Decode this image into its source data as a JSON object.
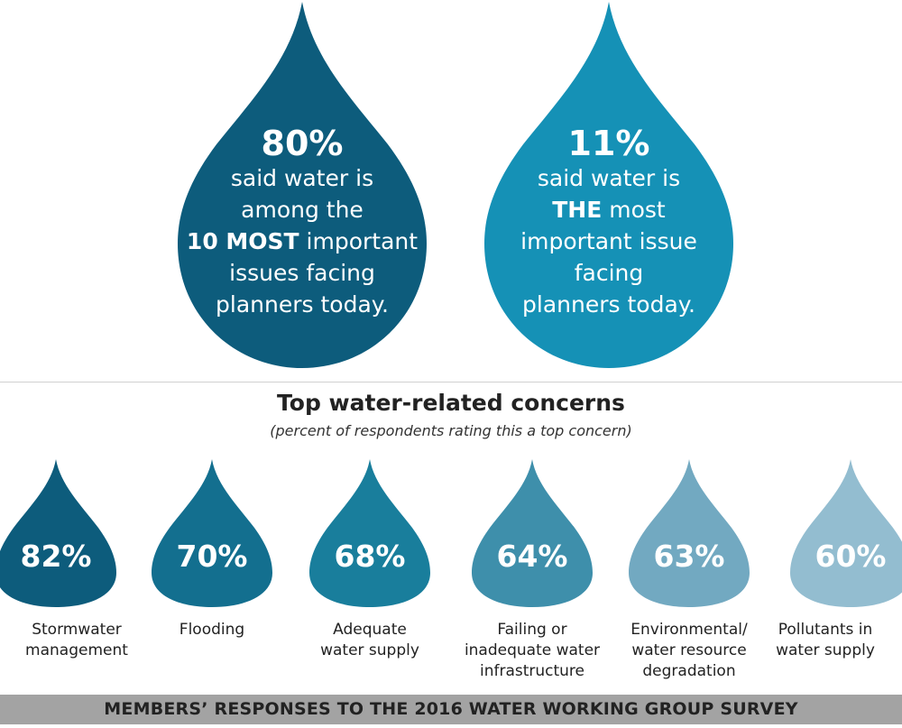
{
  "headline_stats": [
    {
      "value": "80%",
      "lines": [
        [
          {
            "t": "said water is",
            "b": false
          }
        ],
        [
          {
            "t": "among the",
            "b": false
          }
        ],
        [
          {
            "t": "10 MOST",
            "b": true
          },
          {
            "t": " important",
            "b": false
          }
        ],
        [
          {
            "t": "issues facing",
            "b": false
          }
        ],
        [
          {
            "t": "planners today.",
            "b": false
          }
        ]
      ],
      "color": "#0d5c7c"
    },
    {
      "value": "11%",
      "lines": [
        [
          {
            "t": "said water is",
            "b": false
          }
        ],
        [
          {
            "t": "THE",
            "b": true
          },
          {
            "t": " most",
            "b": false
          }
        ],
        [
          {
            "t": "important issue",
            "b": false
          }
        ],
        [
          {
            "t": "facing",
            "b": false
          }
        ],
        [
          {
            "t": "planners today.",
            "b": false
          }
        ]
      ],
      "color": "#1591b6"
    }
  ],
  "chart_data": {
    "type": "bar",
    "title": "Top water-related concerns",
    "subtitle": "(percent of respondents rating this a top concern)",
    "categories": [
      [
        "Stormwater",
        "management"
      ],
      [
        "Flooding"
      ],
      [
        "Adequate",
        "water supply"
      ],
      [
        "Failing or",
        "inadequate water",
        "infrastructure"
      ],
      [
        "Environmental/",
        "water resource",
        "degradation"
      ],
      [
        "Pollutants in",
        "water supply"
      ]
    ],
    "values": [
      82,
      70,
      68,
      64,
      63,
      60
    ],
    "value_labels": [
      "82%",
      "70%",
      "68%",
      "64%",
      "63%",
      "60%"
    ],
    "colors": [
      "#0d5c7c",
      "#136f8f",
      "#197e9c",
      "#3e8fab",
      "#72a9c1",
      "#93bdd0"
    ]
  },
  "footer": "MEMBERS’ RESPONSES TO THE 2016 WATER WORKING GROUP SURVEY"
}
